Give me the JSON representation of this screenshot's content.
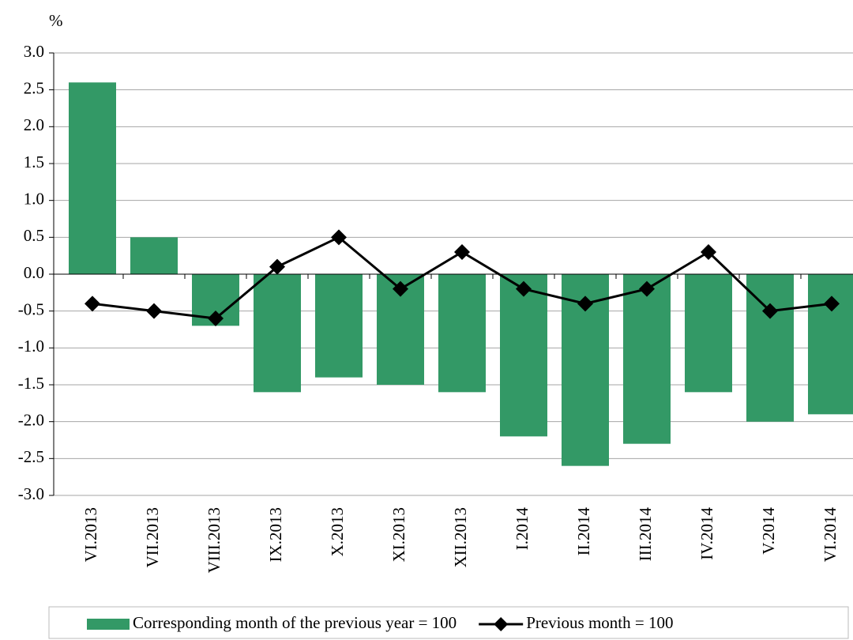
{
  "chart_data": {
    "type": "bar",
    "y_axis_label": "%",
    "categories": [
      "VI.2013",
      "VII.2013",
      "VIII.2013",
      "IX.2013",
      "X.2013",
      "XI.2013",
      "XII.2013",
      "I.2014",
      "II.2014",
      "III.2014",
      "IV.2014",
      "V.2014",
      "VI.2014"
    ],
    "series": [
      {
        "name": "Corresponding month of the previous year = 100",
        "type": "bar",
        "color": "#339966",
        "values": [
          2.6,
          0.5,
          -0.7,
          -1.6,
          -1.4,
          -1.5,
          -1.6,
          -2.2,
          -2.6,
          -2.3,
          -1.6,
          -2.0,
          -1.9
        ]
      },
      {
        "name": "Previous month = 100",
        "type": "line",
        "color": "#000000",
        "values": [
          -0.4,
          -0.5,
          -0.6,
          0.1,
          0.5,
          -0.2,
          0.3,
          -0.2,
          -0.4,
          -0.2,
          0.3,
          -0.5,
          -0.4
        ]
      }
    ],
    "ylim": [
      -3,
      3
    ],
    "yticks": [
      {
        "value": -3,
        "label": "-3.0"
      },
      -2.5,
      {
        "value": -2,
        "label": "-2.0"
      },
      -1.5,
      {
        "value": -1,
        "label": "-1.0"
      },
      -0.5,
      {
        "value": 0,
        "label": "0.0"
      },
      0.5,
      {
        "value": 1,
        "label": "1.0"
      },
      1.5,
      {
        "value": 2,
        "label": "2.0"
      },
      2.5,
      {
        "value": 3,
        "label": "3.0"
      }
    ],
    "grid": true,
    "legend": "bottom"
  }
}
